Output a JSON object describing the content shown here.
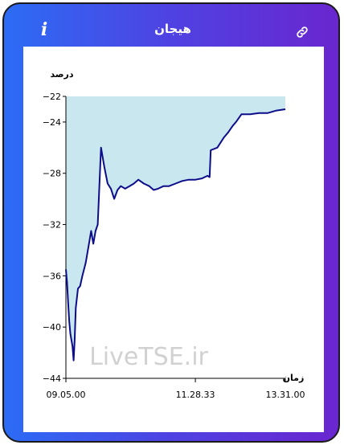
{
  "header": {
    "title": "هیجان",
    "info_icon": "info-icon",
    "link_icon": "link-icon",
    "info_glyph": "i"
  },
  "colors": {
    "gradient_start": "#2c6cf5",
    "gradient_end": "#6a26cf",
    "line": "#0d0d8a",
    "fill": "#c9e7ef"
  },
  "chart_data": {
    "type": "area",
    "title": "",
    "ylabel": "درصد",
    "xlabel": "زمان",
    "watermark": "LiveTSE.ir",
    "ylim": [
      -44,
      -22
    ],
    "y_ticks": [
      -22,
      -24,
      -28,
      -32,
      -36,
      -40,
      -44
    ],
    "y_tick_labels": [
      "−22",
      "−24",
      "−28",
      "−32",
      "−36",
      "−40",
      "−44"
    ],
    "x_tick_labels": [
      "09.05.00",
      "11.28.33",
      "13.31.00"
    ],
    "x_range": [
      0,
      1
    ],
    "x_tick_pos": [
      0,
      0.59,
      1
    ],
    "series": [
      {
        "points": [
          [
            0.0,
            -35.5
          ],
          [
            0.005,
            -36.5
          ],
          [
            0.01,
            -38.0
          ],
          [
            0.015,
            -39.5
          ],
          [
            0.02,
            -40.5
          ],
          [
            0.03,
            -41.5
          ],
          [
            0.035,
            -42.6
          ],
          [
            0.04,
            -41.0
          ],
          [
            0.045,
            -38.5
          ],
          [
            0.055,
            -37.0
          ],
          [
            0.065,
            -36.8
          ],
          [
            0.075,
            -36.0
          ],
          [
            0.09,
            -35.0
          ],
          [
            0.105,
            -33.5
          ],
          [
            0.115,
            -32.5
          ],
          [
            0.125,
            -33.5
          ],
          [
            0.135,
            -32.5
          ],
          [
            0.145,
            -32.0
          ],
          [
            0.16,
            -26.0
          ],
          [
            0.175,
            -27.5
          ],
          [
            0.19,
            -28.8
          ],
          [
            0.205,
            -29.2
          ],
          [
            0.22,
            -30.0
          ],
          [
            0.235,
            -29.3
          ],
          [
            0.25,
            -29.0
          ],
          [
            0.27,
            -29.2
          ],
          [
            0.29,
            -29.0
          ],
          [
            0.31,
            -28.8
          ],
          [
            0.33,
            -28.5
          ],
          [
            0.355,
            -28.8
          ],
          [
            0.38,
            -29.0
          ],
          [
            0.4,
            -29.3
          ],
          [
            0.42,
            -29.2
          ],
          [
            0.445,
            -29.0
          ],
          [
            0.47,
            -29.0
          ],
          [
            0.5,
            -28.8
          ],
          [
            0.53,
            -28.6
          ],
          [
            0.56,
            -28.5
          ],
          [
            0.59,
            -28.5
          ],
          [
            0.62,
            -28.4
          ],
          [
            0.645,
            -28.2
          ],
          [
            0.655,
            -28.3
          ],
          [
            0.66,
            -26.2
          ],
          [
            0.69,
            -26.0
          ],
          [
            0.72,
            -25.2
          ],
          [
            0.74,
            -24.8
          ],
          [
            0.76,
            -24.3
          ],
          [
            0.775,
            -24.0
          ],
          [
            0.8,
            -23.4
          ],
          [
            0.84,
            -23.4
          ],
          [
            0.88,
            -23.3
          ],
          [
            0.92,
            -23.3
          ],
          [
            0.96,
            -23.1
          ],
          [
            1.0,
            -23.0
          ]
        ]
      }
    ]
  }
}
